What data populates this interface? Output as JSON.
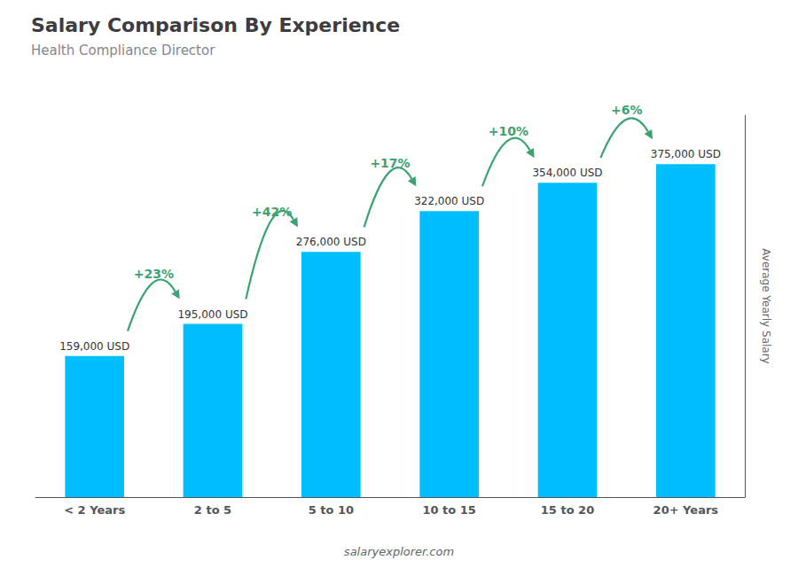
{
  "chart_data": {
    "type": "bar",
    "title": "Salary Comparison By Experience",
    "subtitle": "Health Compliance Director",
    "categories": [
      "< 2 Years",
      "2 to 5",
      "5 to 10",
      "10 to 15",
      "15 to 20",
      "20+ Years"
    ],
    "values": [
      159000,
      195000,
      276000,
      322000,
      354000,
      375000
    ],
    "value_labels": [
      "159,000 USD",
      "195,000 USD",
      "276,000 USD",
      "322,000 USD",
      "354,000 USD",
      "375,000 USD"
    ],
    "data_labels": true,
    "annotations": [
      "+23%",
      "+42%",
      "+17%",
      "+10%",
      "+6%"
    ],
    "ylabel": "Average Yearly Salary",
    "footer": "salaryexplorer.com",
    "color": "#00BFFF",
    "ylim": [
      0,
      430000
    ],
    "tick_labels": "x",
    "grid": false
  }
}
